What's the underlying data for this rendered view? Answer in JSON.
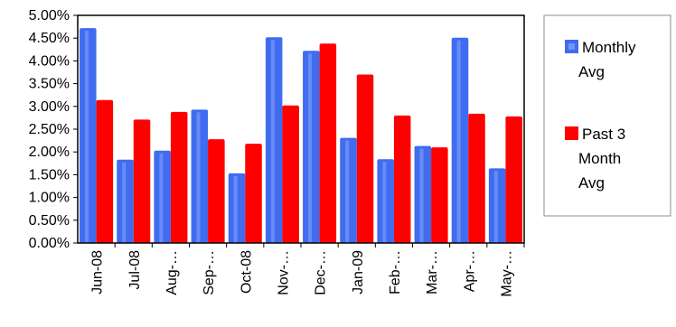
{
  "chart_data": {
    "type": "bar",
    "categories": [
      "Jun-08",
      "Jul-08",
      "Aug-…",
      "Sep-…",
      "Oct-08",
      "Nov-…",
      "Dec-…",
      "Jan-09",
      "Feb-…",
      "Mar-…",
      "Apr-…",
      "May-…"
    ],
    "series": [
      {
        "name": "Monthly Avg",
        "legend_lines": [
          "Monthly",
          "Avg"
        ],
        "color": "#3f6cf0",
        "values": [
          4.72,
          1.83,
          2.03,
          2.93,
          1.53,
          4.52,
          4.22,
          2.31,
          1.84,
          2.13,
          4.51,
          1.64
        ]
      },
      {
        "name": "Past 3 Month Avg",
        "legend_lines": [
          "Past 3",
          "Month",
          "Avg"
        ],
        "color": "#ff0000",
        "values": [
          3.14,
          2.71,
          2.88,
          2.28,
          2.18,
          3.02,
          4.38,
          3.7,
          2.8,
          2.1,
          2.84,
          2.78
        ]
      }
    ],
    "ylim": [
      0,
      5
    ],
    "y_ticks": [
      "0.00%",
      "0.50%",
      "1.00%",
      "1.50%",
      "2.00%",
      "2.50%",
      "3.00%",
      "3.50%",
      "4.00%",
      "4.50%",
      "5.00%"
    ],
    "title": "",
    "xlabel": "",
    "ylabel": "",
    "grid": false,
    "legend_position": "right"
  }
}
